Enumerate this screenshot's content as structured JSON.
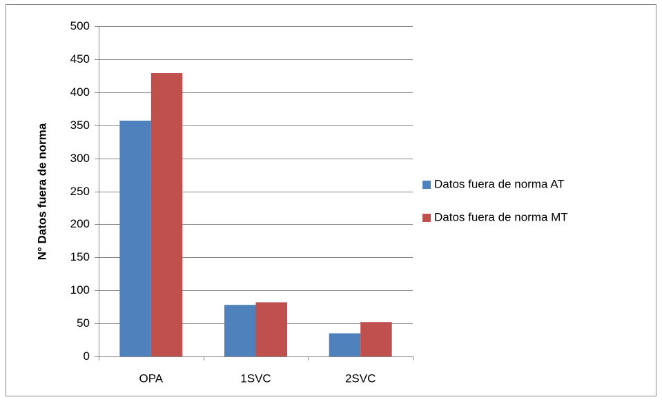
{
  "chart_data": {
    "type": "bar",
    "y_label": "N° Datos fuera de norma",
    "categories": [
      "OPA",
      "1SVC",
      "2SVC"
    ],
    "series": [
      {
        "name": "Datos fuera de norma AT",
        "color": "#4f81bd",
        "values": [
          357,
          78,
          35
        ]
      },
      {
        "name": "Datos fuera de norma MT",
        "color": "#c0504d",
        "values": [
          429,
          82,
          52
        ]
      }
    ],
    "ylim": [
      0,
      500
    ],
    "yticks": [
      0,
      50,
      100,
      150,
      200,
      250,
      300,
      350,
      400,
      450,
      500
    ],
    "grid": true,
    "legend": "right"
  }
}
